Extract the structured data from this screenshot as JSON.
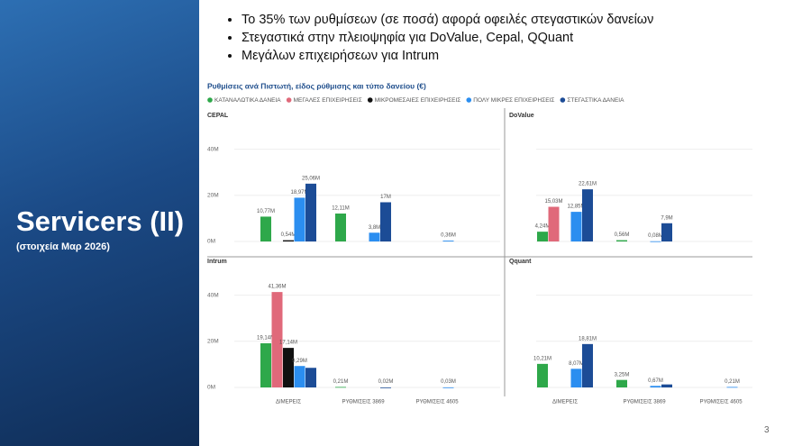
{
  "slide": {
    "title": "Servicers (II)",
    "subtitle": "(στοιχεία Μαρ 2026)",
    "bullets": [
      "Το 35% των ρυθμίσεων (σε ποσά) αφορά οφειλές στεγαστικών δανείων",
      "Στεγαστικά στην πλειοψηφία για DoValue, Cepal, QQuant",
      "Μεγάλων επιχειρήσεων για Intrum"
    ],
    "page_number": "3"
  },
  "chart_data": {
    "type": "bar",
    "title": "Ρυθμίσεις ανά Πιστωτή, είδος ρύθμισης και τύπο δανείου (€)",
    "categories": [
      "ΔΙΜΕΡΕΙΣ",
      "ΡΥΘΜΙΣΕΙΣ 3869",
      "ΡΥΘΜΙΣΕΙΣ 4605"
    ],
    "series": [
      {
        "name": "ΚΑΤΑΝΑΛΩΤΙΚΑ ΔΑΝΕΙΑ",
        "color": "#2ea84a"
      },
      {
        "name": "ΜΕΓΑΛΕΣ ΕΠΙΧΕΙΡΗΣΕΙΣ",
        "color": "#e0697a"
      },
      {
        "name": "ΜΙΚΡΟΜΕΣΑΙΕΣ ΕΠΙΧΕΙΡΗΣΕΙΣ",
        "color": "#111111"
      },
      {
        "name": "ΠΟΛΥ ΜΙΚΡΕΣ ΕΠΙΧΕΙΡΗΣΕΙΣ",
        "color": "#2b8ef0"
      },
      {
        "name": "ΣΤΕΓΑΣΤΙΚΑ ΔΑΝΕΙΑ",
        "color": "#1c4c96"
      }
    ],
    "ylim": [
      0,
      50
    ],
    "yticks": [
      {
        "value": 0,
        "label": "0M"
      },
      {
        "value": 20,
        "label": "20M"
      },
      {
        "value": 40,
        "label": "40M"
      }
    ],
    "panels": [
      {
        "title": "CEPAL",
        "series": [
          {
            "values": [
              10.77,
              12.11,
              null
            ],
            "value_labels": [
              "10,77M",
              "12,11M",
              null
            ]
          },
          {
            "values": [
              null,
              null,
              null
            ],
            "value_labels": [
              null,
              null,
              null
            ]
          },
          {
            "values": [
              0.54,
              null,
              null
            ],
            "value_labels": [
              "0,54M",
              null,
              null
            ]
          },
          {
            "values": [
              18.97,
              3.8,
              0.36
            ],
            "value_labels": [
              "18,97M",
              "3,8M",
              "0,36M"
            ]
          },
          {
            "values": [
              25.06,
              17,
              null
            ],
            "value_labels": [
              "25,06M",
              "17M",
              null
            ]
          }
        ]
      },
      {
        "title": "DoValue",
        "series": [
          {
            "values": [
              4.24,
              0.56,
              null
            ],
            "value_labels": [
              "4,24M",
              "0,56M",
              null
            ]
          },
          {
            "values": [
              15.03,
              null,
              null
            ],
            "value_labels": [
              "15,03M",
              null,
              null
            ]
          },
          {
            "values": [
              null,
              null,
              null
            ],
            "value_labels": [
              null,
              null,
              null
            ]
          },
          {
            "values": [
              12.85,
              0.08,
              null
            ],
            "value_labels": [
              "12,85M",
              "0,08M",
              null
            ]
          },
          {
            "values": [
              22.61,
              7.9,
              null
            ],
            "value_labels": [
              "22,61M",
              "7,9M",
              null
            ]
          }
        ]
      },
      {
        "title": "Intrum",
        "series": [
          {
            "values": [
              19.14,
              0.21,
              null
            ],
            "value_labels": [
              "19,14M",
              "0,21M",
              null
            ]
          },
          {
            "values": [
              41.36,
              null,
              null
            ],
            "value_labels": [
              "41,36M",
              null,
              null
            ]
          },
          {
            "values": [
              17.14,
              null,
              null
            ],
            "value_labels": [
              "17,14M",
              null,
              null
            ]
          },
          {
            "values": [
              9.29,
              null,
              0.03
            ],
            "value_labels": [
              "9,29M",
              null,
              "0,03M"
            ]
          },
          {
            "values": [
              8.5,
              0.02,
              null
            ],
            "value_labels": [
              null,
              "0,02M",
              null
            ]
          }
        ]
      },
      {
        "title": "Qquant",
        "series": [
          {
            "values": [
              10.21,
              3.25,
              null
            ],
            "value_labels": [
              "10,21M",
              "3,25M",
              null
            ]
          },
          {
            "values": [
              null,
              null,
              null
            ],
            "value_labels": [
              null,
              null,
              null
            ]
          },
          {
            "values": [
              null,
              null,
              null
            ],
            "value_labels": [
              null,
              null,
              null
            ]
          },
          {
            "values": [
              8.07,
              0.67,
              0.21
            ],
            "value_labels": [
              "8,07M",
              "0,67M",
              "0,21M"
            ]
          },
          {
            "values": [
              18.81,
              1.3,
              null
            ],
            "value_labels": [
              "18,81M",
              null,
              null
            ]
          }
        ]
      }
    ]
  }
}
